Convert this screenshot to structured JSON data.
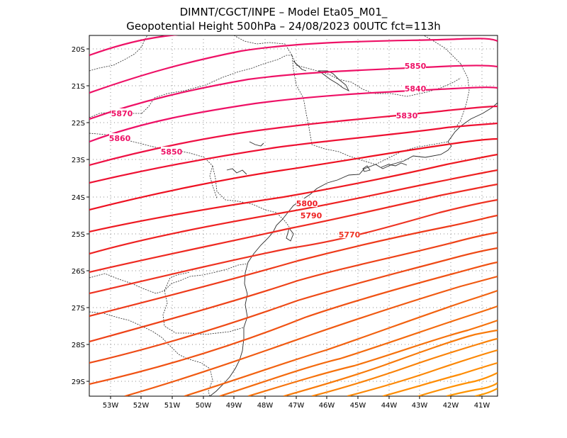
{
  "title": {
    "line1": "DIMNT/CGCT/INPE –  Model Eta05_M01_",
    "line2": "Geopotential Height 500hPa –  24/08/2023 00UTC fct=113h"
  },
  "axes": {
    "lon_labels": [
      "53W",
      "52W",
      "51W",
      "50W",
      "49W",
      "48W",
      "47W",
      "46W",
      "45W",
      "44W",
      "43W",
      "42W",
      "41W"
    ],
    "lat_labels": [
      "20S",
      "21S",
      "22S",
      "23S",
      "24S",
      "25S",
      "26S",
      "27S",
      "28S",
      "29S"
    ]
  },
  "contour_labels": [
    "5850",
    "5840",
    "5830",
    "5870",
    "5860",
    "5850",
    "5800",
    "5790",
    "5770"
  ],
  "colors": {
    "highest": "#ee1166",
    "mid": "#ee1a22",
    "low": "#ff8800"
  }
}
